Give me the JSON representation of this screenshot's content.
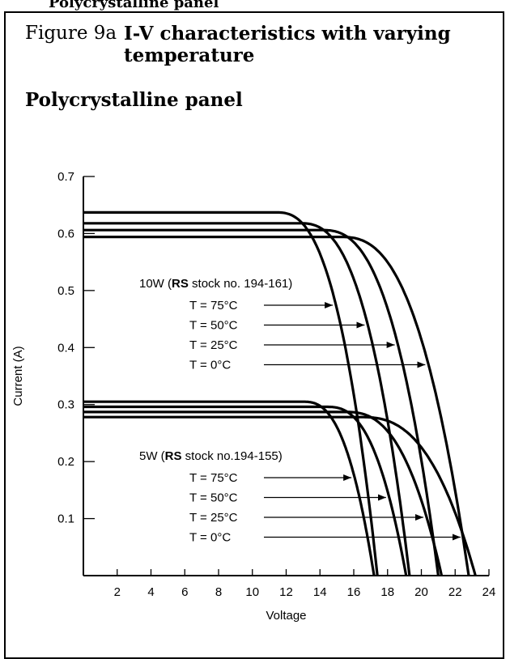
{
  "header": {
    "cut_text": "Polycrystalline panel",
    "figure_number": "Figure 9a",
    "figure_title": "I-V characteristics with varying temperature",
    "subtitle": "Polycrystalline panel"
  },
  "chart_data": {
    "type": "line",
    "xlabel": "Voltage",
    "ylabel": "Current (A)",
    "xlim": [
      0,
      24
    ],
    "ylim": [
      0,
      0.7
    ],
    "x_ticks": [
      2,
      4,
      6,
      8,
      10,
      12,
      14,
      16,
      18,
      20,
      22,
      24
    ],
    "y_ticks": [
      0.1,
      0.2,
      0.3,
      0.4,
      0.5,
      0.6,
      0.7
    ],
    "grid": false,
    "groups": [
      {
        "label_prefix": "10W (",
        "label_brand": "RS",
        "label_suffix": " stock no. 194-161)",
        "series": [
          {
            "name": "T = 75°C",
            "isc": 0.637,
            "voc": 17.4,
            "knee_v": 11.4
          },
          {
            "name": "T = 50°C",
            "isc": 0.618,
            "voc": 19.3,
            "knee_v": 12.8
          },
          {
            "name": "T = 25°C",
            "isc": 0.606,
            "voc": 21.0,
            "knee_v": 14.1
          },
          {
            "name": "T = 0°C",
            "isc": 0.594,
            "voc": 22.8,
            "knee_v": 15.2
          }
        ]
      },
      {
        "label_prefix": "5W (",
        "label_brand": "RS",
        "label_suffix": " stock no.194-155)",
        "series": [
          {
            "name": "T = 75°C",
            "isc": 0.305,
            "voc": 17.2,
            "knee_v": 13.0
          },
          {
            "name": "T = 50°C",
            "isc": 0.296,
            "voc": 19.1,
            "knee_v": 14.4
          },
          {
            "name": "T = 25°C",
            "isc": 0.287,
            "voc": 21.2,
            "knee_v": 15.5
          },
          {
            "name": "T = 0°C",
            "isc": 0.278,
            "voc": 23.2,
            "knee_v": 16.4
          }
        ]
      }
    ]
  }
}
